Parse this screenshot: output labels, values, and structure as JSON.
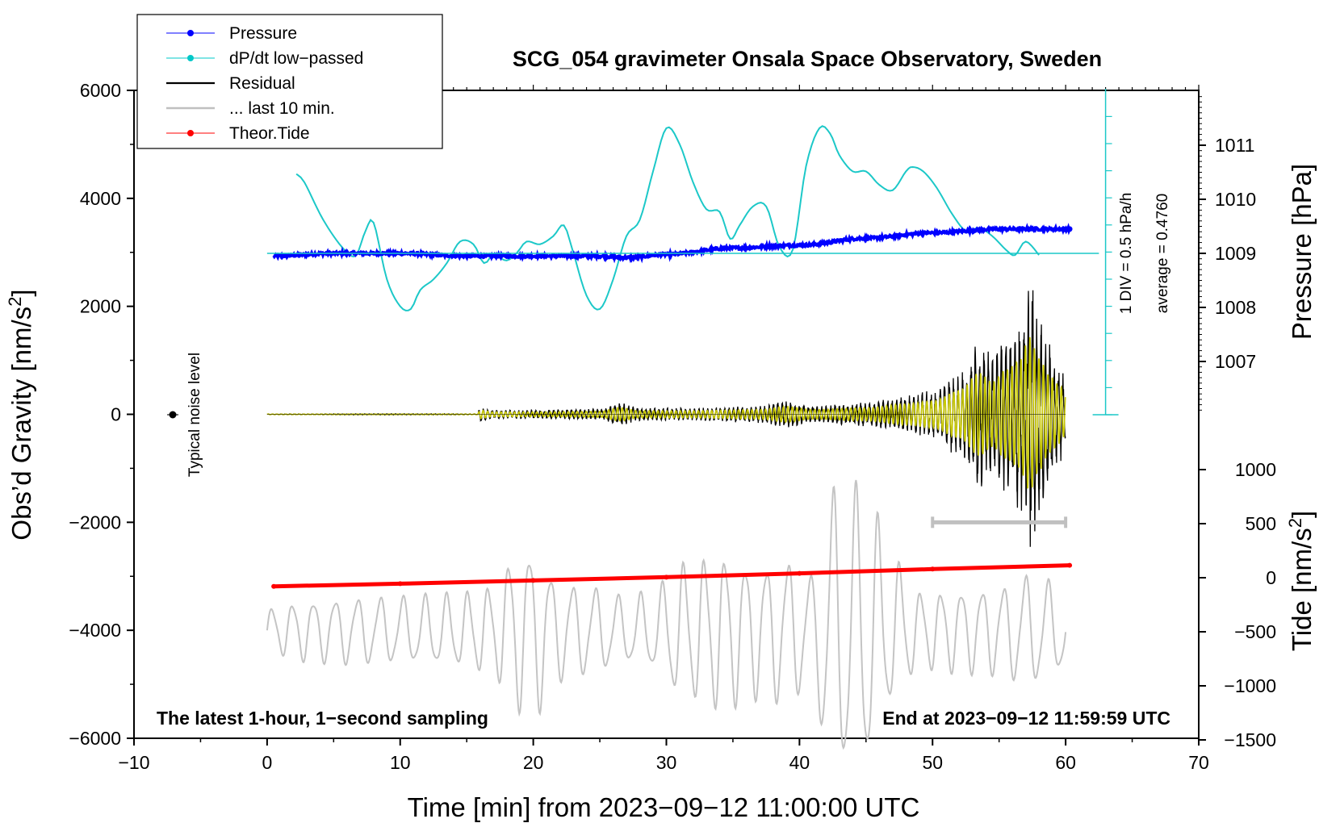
{
  "chart_data": {
    "type": "line",
    "title": "SCG_054 gravimeter Onsala Space Observatory, Sweden",
    "xlabel": "Time [min] from 2023−09−12 11:00:00 UTC",
    "ylabel_left": "Obs’d Gravity [nm/s",
    "ylabel_right_top": "Pressure [hPa]",
    "ylabel_right_bottom": "Tide [nm/s",
    "unit_sup": "2",
    "unit_close": "]",
    "xlim": [
      -10,
      70
    ],
    "ylim_left": [
      -6000,
      6000
    ],
    "x_ticks": [
      "−10",
      "0",
      "10",
      "20",
      "30",
      "40",
      "50",
      "60",
      "70"
    ],
    "y_left_ticks": [
      "6000",
      "4000",
      "2000",
      "0",
      "−2000",
      "−4000",
      "−6000"
    ],
    "pressure_ticks": [
      "1011",
      "1010",
      "1009",
      "1008",
      "1007"
    ],
    "tide_ticks": [
      "1000",
      "500",
      "0",
      "−500",
      "−1000",
      "−1500"
    ],
    "corner_left": "The latest 1-hour, 1−second sampling",
    "corner_right": "End at 2023−09−12 11:59:59 UTC",
    "noise_label": "Typical noise level",
    "scale_div": "1 DIV = 0.5 hPa/h",
    "scale_avg": "average = 0.4760",
    "legend": [
      {
        "label": "Pressure",
        "color": "#0000ff",
        "marker": true
      },
      {
        "label": "dP/dt low−passed",
        "color": "#00c8c8",
        "marker": true
      },
      {
        "label": "Residual",
        "color": "#000000",
        "marker": false
      },
      {
        "label": "... last 10 min.",
        "color": "#c0c0c0",
        "marker": false
      },
      {
        "label": "Theor.Tide",
        "color": "#ff0000",
        "marker": true
      }
    ],
    "colors": {
      "pressure": "#0000ff",
      "dpdt": "#1cc8c8",
      "residual": "#000000",
      "last10": "#c4c4c4",
      "filtered": "#c8c800",
      "tide": "#ff0000"
    },
    "series": [
      {
        "name": "Pressure",
        "axis": "pressure_hPa",
        "x": [
          0.5,
          5,
          10,
          15,
          20,
          25,
          27,
          30,
          35,
          40,
          45,
          50,
          55,
          60.3
        ],
        "values": [
          1008.95,
          1009.0,
          1009.0,
          1008.95,
          1008.95,
          1008.95,
          1008.92,
          1008.98,
          1009.1,
          1009.15,
          1009.28,
          1009.38,
          1009.45,
          1009.45
        ]
      },
      {
        "name": "dP/dt low−passed",
        "axis": "gravity_display",
        "x": [
          2.2,
          2.8,
          4,
          5,
          6,
          6.7,
          7.4,
          8,
          9,
          10,
          10.8,
          11.5,
          12.5,
          13.5,
          14.5,
          15.5,
          16.3,
          17,
          18,
          18.8,
          19.5,
          20.5,
          21.5,
          22.3,
          23,
          24,
          25,
          26,
          27,
          28,
          29,
          30,
          31,
          32,
          33,
          34,
          34.8,
          35.5,
          36.5,
          37.5,
          38.5,
          39.5,
          40.5,
          41.5,
          42.3,
          43,
          44,
          45,
          46,
          47,
          48,
          48.5,
          49.3,
          50.3,
          51.5,
          52.5,
          53.5,
          54.5,
          55.5,
          56.2,
          57,
          58
        ],
        "values": [
          4450,
          4300,
          3700,
          3300,
          3000,
          2950,
          3400,
          3550,
          2500,
          2000,
          1950,
          2300,
          2500,
          2800,
          3200,
          3150,
          2800,
          2950,
          2850,
          3000,
          3200,
          3150,
          3300,
          3500,
          3000,
          2200,
          1950,
          2500,
          3300,
          3600,
          4500,
          5300,
          5000,
          4300,
          3800,
          3750,
          3250,
          3500,
          3850,
          3850,
          3100,
          3050,
          4600,
          5300,
          5200,
          4800,
          4500,
          4500,
          4250,
          4150,
          4500,
          4580,
          4500,
          4200,
          3700,
          3400,
          3450,
          3300,
          3050,
          2950,
          3200,
          2950
        ]
      },
      {
        "name": "Theor.Tide",
        "axis": "tide_nm_s2",
        "x": [
          0.5,
          10,
          20,
          30,
          40,
          50,
          60.3
        ],
        "values": [
          -80,
          -55,
          -25,
          5,
          40,
          80,
          115
        ]
      },
      {
        "name": "Residual",
        "axis": "gravity_nm_s2",
        "note": "flat near 0 until ~16 min, growing oscillation, peak about +2700 / −2600 near 57.5 min"
      },
      {
        "name": "... last 10 min.",
        "axis": "gravity_display",
        "note": "zoomed residual of the last 10 minutes plotted across 0–60 min, centred near −4000",
        "x_window": [
          50,
          60
        ]
      }
    ]
  }
}
